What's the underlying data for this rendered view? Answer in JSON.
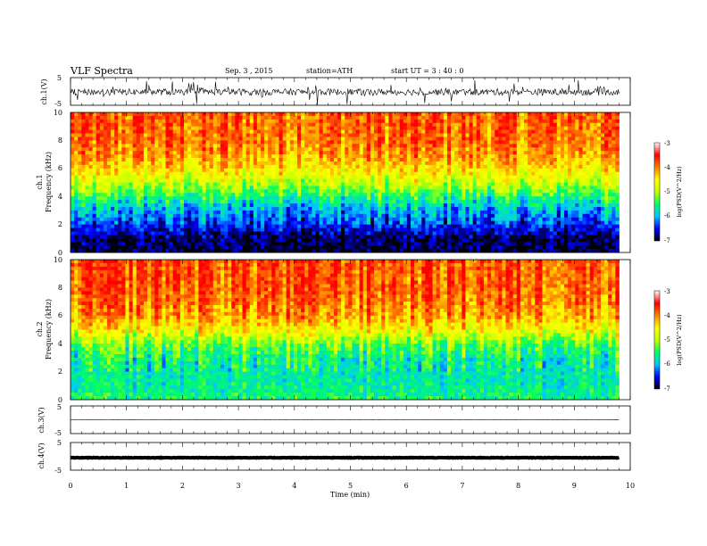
{
  "header": {
    "title": "VLF  Spectra",
    "date": "Sep. 3  , 2015",
    "station": "station=ATH",
    "start": "start  UT  =   3  : 40 : 0"
  },
  "xaxis": {
    "label": "Time  (min)",
    "ticks": [
      "0",
      "1",
      "2",
      "3",
      "4",
      "5",
      "6",
      "7",
      "8",
      "9",
      "10"
    ],
    "range": [
      0,
      10
    ],
    "data_end": 9.8
  },
  "panels": {
    "ch1_wave": {
      "ylabel": "ch.1(V)",
      "ticks": [
        "5",
        "-5"
      ]
    },
    "ch1_spec": {
      "ylabel_a": "ch.1",
      "ylabel_b": "Frequency  (kHz)",
      "ticks": [
        "10",
        "8",
        "6",
        "4",
        "2",
        "0"
      ]
    },
    "ch2_spec": {
      "ylabel_a": "ch.2",
      "ylabel_b": "Frequency  (kHz)",
      "ticks": [
        "10",
        "8",
        "6",
        "4",
        "2",
        "0"
      ]
    },
    "ch3_wave": {
      "ylabel": "ch.3(V)",
      "ticks": [
        "5",
        "-5"
      ]
    },
    "ch4_wave": {
      "ylabel": "ch.4(V)",
      "ticks": [
        "5",
        "-5"
      ]
    }
  },
  "colorbar": {
    "label": "log(PSD(V^2/Hz)",
    "ticks": [
      "-3",
      "-4",
      "-5",
      "-6",
      "-7"
    ],
    "colors": [
      "#000000",
      "#0000ff",
      "#00c8ff",
      "#00ff60",
      "#c8ff00",
      "#ffff00",
      "#ff8000",
      "#ff0000",
      "#ffffff"
    ]
  },
  "chart_data": [
    {
      "type": "line",
      "name": "ch.1 waveform",
      "x_range_min": [
        0,
        9.8
      ],
      "ylim": [
        -5,
        5
      ],
      "ylabel": "ch.1(V)",
      "baseline": -0.2,
      "amplitude": 1.2
    },
    {
      "type": "heatmap",
      "name": "ch.1 spectrogram",
      "x_range_min": [
        0,
        9.8
      ],
      "ylim_khz": [
        0,
        10
      ],
      "zlim_log_psd": [
        -7,
        -3
      ],
      "profile_khz": [
        0,
        1,
        2,
        3,
        4,
        5,
        6,
        7,
        8,
        10
      ],
      "profile_log_psd": [
        -6.9,
        -6.8,
        -6.3,
        -5.9,
        -5.3,
        -4.6,
        -4.1,
        -3.7,
        -3.5,
        -3.4
      ]
    },
    {
      "type": "heatmap",
      "name": "ch.2 spectrogram",
      "x_range_min": [
        0,
        9.8
      ],
      "ylim_khz": [
        0,
        10
      ],
      "zlim_log_psd": [
        -7,
        -3
      ],
      "profile_khz": [
        0,
        1,
        2,
        3,
        4,
        5,
        6,
        7,
        8,
        10
      ],
      "profile_log_psd": [
        -5.3,
        -5.5,
        -5.5,
        -5.4,
        -5.0,
        -4.2,
        -3.7,
        -3.5,
        -3.4,
        -3.3
      ]
    },
    {
      "type": "line",
      "name": "ch.3 waveform",
      "x_range_min": [
        0,
        9.8
      ],
      "ylim": [
        -5,
        5
      ],
      "ylabel": "ch.3(V)",
      "baseline": 0,
      "amplitude": 0.05
    },
    {
      "type": "line",
      "name": "ch.4 waveform",
      "x_range_min": [
        0,
        9.8
      ],
      "ylim": [
        -5,
        5
      ],
      "ylabel": "ch.4(V)",
      "baseline": -0.5,
      "amplitude": 0.1
    }
  ]
}
